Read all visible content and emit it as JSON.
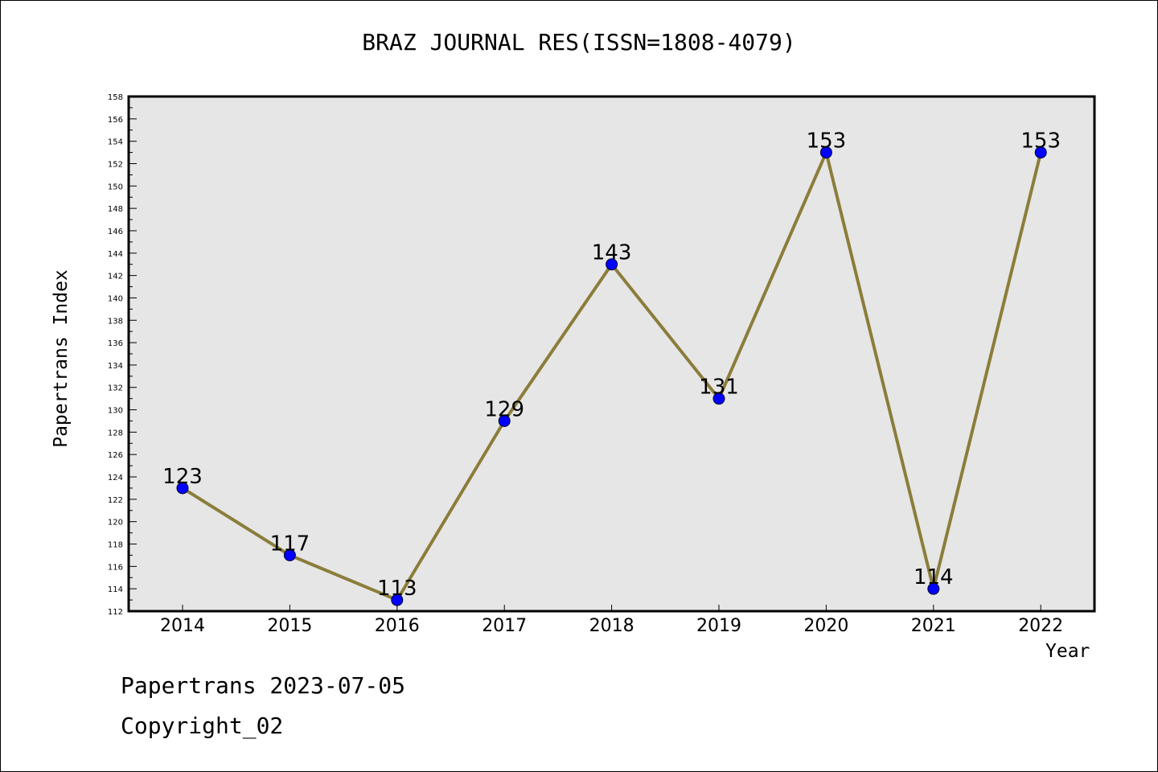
{
  "title": "BRAZ JOURNAL RES(ISSN=1808-4079)",
  "footer": {
    "line1": "Papertrans 2023-07-05",
    "line2": "Copyright_02"
  },
  "colors": {
    "plot_background": "#e6e6e6",
    "line": "#8b7d3a",
    "marker": "#0000ff"
  },
  "chart_data": {
    "type": "line",
    "title": "BRAZ JOURNAL RES(ISSN=1808-4079)",
    "xlabel": "Year",
    "ylabel": "Papertrans Index",
    "categories": [
      "2014",
      "2015",
      "2016",
      "2017",
      "2018",
      "2019",
      "2020",
      "2021",
      "2022"
    ],
    "series": [
      {
        "values": [
          123,
          117,
          113,
          129,
          143,
          131,
          153,
          114,
          153
        ]
      }
    ],
    "ylim": [
      112,
      158
    ],
    "ytick_step": 2,
    "grid": false,
    "data_labels": true
  }
}
